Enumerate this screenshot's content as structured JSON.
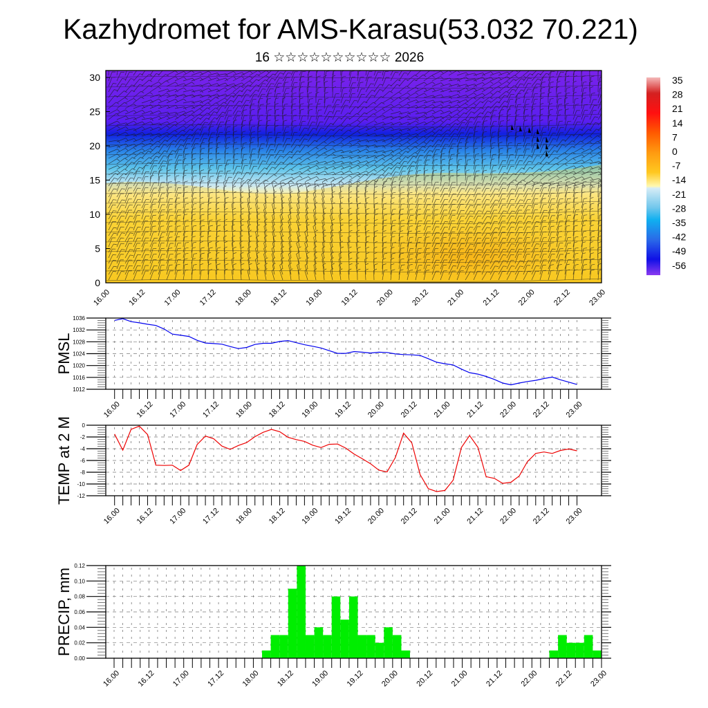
{
  "page": {
    "title": "Kazhydromet for AMS-Karasu(53.032 70.221)",
    "subtitle": "16 ☆☆☆☆☆☆☆☆☆☆ 2026"
  },
  "colors": {
    "pmsl_line": "#0000ee",
    "temp_line": "#ee0000",
    "precip_bar": "#00ee00",
    "grid": "#555555"
  },
  "chart_data": [
    {
      "type": "heatmap",
      "name": "cross-section",
      "title": "",
      "xlabel": "",
      "ylabel": "",
      "ylim": [
        0,
        30
      ],
      "yticks": [
        "0",
        "5",
        "10",
        "15",
        "20",
        "25",
        "30"
      ],
      "xticks": [
        "16.00",
        "16.12",
        "17.00",
        "17.12",
        "18.00",
        "18.12",
        "19.00",
        "19.12",
        "20.00",
        "20.12",
        "21.00",
        "21.12",
        "22.00",
        "22.12",
        "23.00"
      ],
      "colorbar": {
        "labels": [
          "35",
          "28",
          "21",
          "14",
          "7",
          "0",
          "-7",
          "-14",
          "-21",
          "-28",
          "-35",
          "-42",
          "-49",
          "-56"
        ],
        "range": [
          -60,
          38
        ]
      },
      "overlay": "wind barbs"
    },
    {
      "type": "line",
      "name": "pmsl",
      "ylabel": "PMSL",
      "ylim": [
        1012,
        1036
      ],
      "yticks": [
        "1012",
        "1016",
        "1020",
        "1024",
        "1028",
        "1032",
        "1036"
      ],
      "xticks": [
        "16.00",
        "16.12",
        "17.00",
        "17.12",
        "18.00",
        "18.12",
        "19.00",
        "19.12",
        "20.00",
        "20.12",
        "21.00",
        "21.12",
        "22.00",
        "22.12",
        "23.00"
      ],
      "x_step_hours": 3,
      "series": [
        {
          "name": "PMSL",
          "values": [
            1035.2,
            1035.8,
            1034.8,
            1034.4,
            1033.9,
            1033.5,
            1032.3,
            1030.6,
            1030.2,
            1029.8,
            1028.5,
            1027.6,
            1027.4,
            1027.2,
            1026.4,
            1025.7,
            1026.1,
            1027.1,
            1027.5,
            1027.5,
            1028.1,
            1028.4,
            1027.7,
            1027.0,
            1026.5,
            1025.9,
            1025.0,
            1024.1,
            1024.1,
            1024.7,
            1024.5,
            1024.2,
            1024.5,
            1024.4,
            1023.9,
            1023.7,
            1023.6,
            1023.4,
            1022.3,
            1021.1,
            1020.6,
            1020.2,
            1018.8,
            1017.6,
            1017.1,
            1016.3,
            1015.3,
            1014.1,
            1013.5,
            1014.1,
            1014.6,
            1015.0,
            1015.6,
            1016.1,
            1015.2,
            1014.4,
            1013.6
          ]
        }
      ]
    },
    {
      "type": "line",
      "name": "temp",
      "ylabel": "TEMP at 2 M",
      "ylim": [
        -12,
        0
      ],
      "yticks": [
        "-12",
        "-10",
        "-8",
        "-6",
        "-4",
        "-2",
        "0"
      ],
      "xticks": [
        "16.00",
        "16.12",
        "17.00",
        "17.12",
        "18.00",
        "18.12",
        "19.00",
        "19.12",
        "20.00",
        "20.12",
        "21.00",
        "21.12",
        "22.00",
        "22.12",
        "23.00"
      ],
      "x_step_hours": 3,
      "series": [
        {
          "name": "TEMP",
          "values": [
            -1.5,
            -4.25,
            -0.7,
            -0.15,
            -1.6,
            -6.8,
            -6.85,
            -6.8,
            -7.7,
            -6.8,
            -3.3,
            -1.85,
            -2.3,
            -3.55,
            -4.1,
            -3.45,
            -2.95,
            -1.95,
            -1.2,
            -0.7,
            -1.1,
            -2.05,
            -2.45,
            -2.75,
            -3.4,
            -3.8,
            -3.25,
            -3.2,
            -3.9,
            -4.9,
            -5.7,
            -6.55,
            -7.65,
            -7.95,
            -5.5,
            -1.35,
            -3.0,
            -8.4,
            -10.8,
            -11.3,
            -11.1,
            -9.35,
            -3.8,
            -1.75,
            -3.75,
            -8.75,
            -9.05,
            -9.9,
            -9.7,
            -8.65,
            -6.2,
            -4.8,
            -4.55,
            -4.8,
            -4.3,
            -4.05,
            -4.35
          ]
        }
      ]
    },
    {
      "type": "bar",
      "name": "precip",
      "ylabel": "PRECIP, mm",
      "ylim": [
        0,
        0.12
      ],
      "yticks": [
        "0.00",
        "0.02",
        "0.04",
        "0.06",
        "0.08",
        "0.10",
        "0.12"
      ],
      "xticks": [
        "16.00",
        "16.12",
        "17.00",
        "17.12",
        "18.00",
        "18.12",
        "19.00",
        "19.12",
        "20.00",
        "20.12",
        "21.00",
        "21.12",
        "22.00",
        "22.12",
        "23.00"
      ],
      "x_step_hours": 3,
      "values": [
        0,
        0,
        0,
        0,
        0,
        0,
        0,
        0,
        0,
        0,
        0,
        0,
        0,
        0,
        0,
        0,
        0,
        0.01,
        0.03,
        0.03,
        0.09,
        0.12,
        0.03,
        0.04,
        0.03,
        0.08,
        0.05,
        0.08,
        0.03,
        0.03,
        0.02,
        0.04,
        0.03,
        0.01,
        0,
        0,
        0,
        0,
        0,
        0,
        0,
        0,
        0,
        0,
        0,
        0,
        0,
        0,
        0,
        0,
        0.01,
        0.03,
        0.02,
        0.02,
        0.03,
        0.01
      ]
    }
  ]
}
